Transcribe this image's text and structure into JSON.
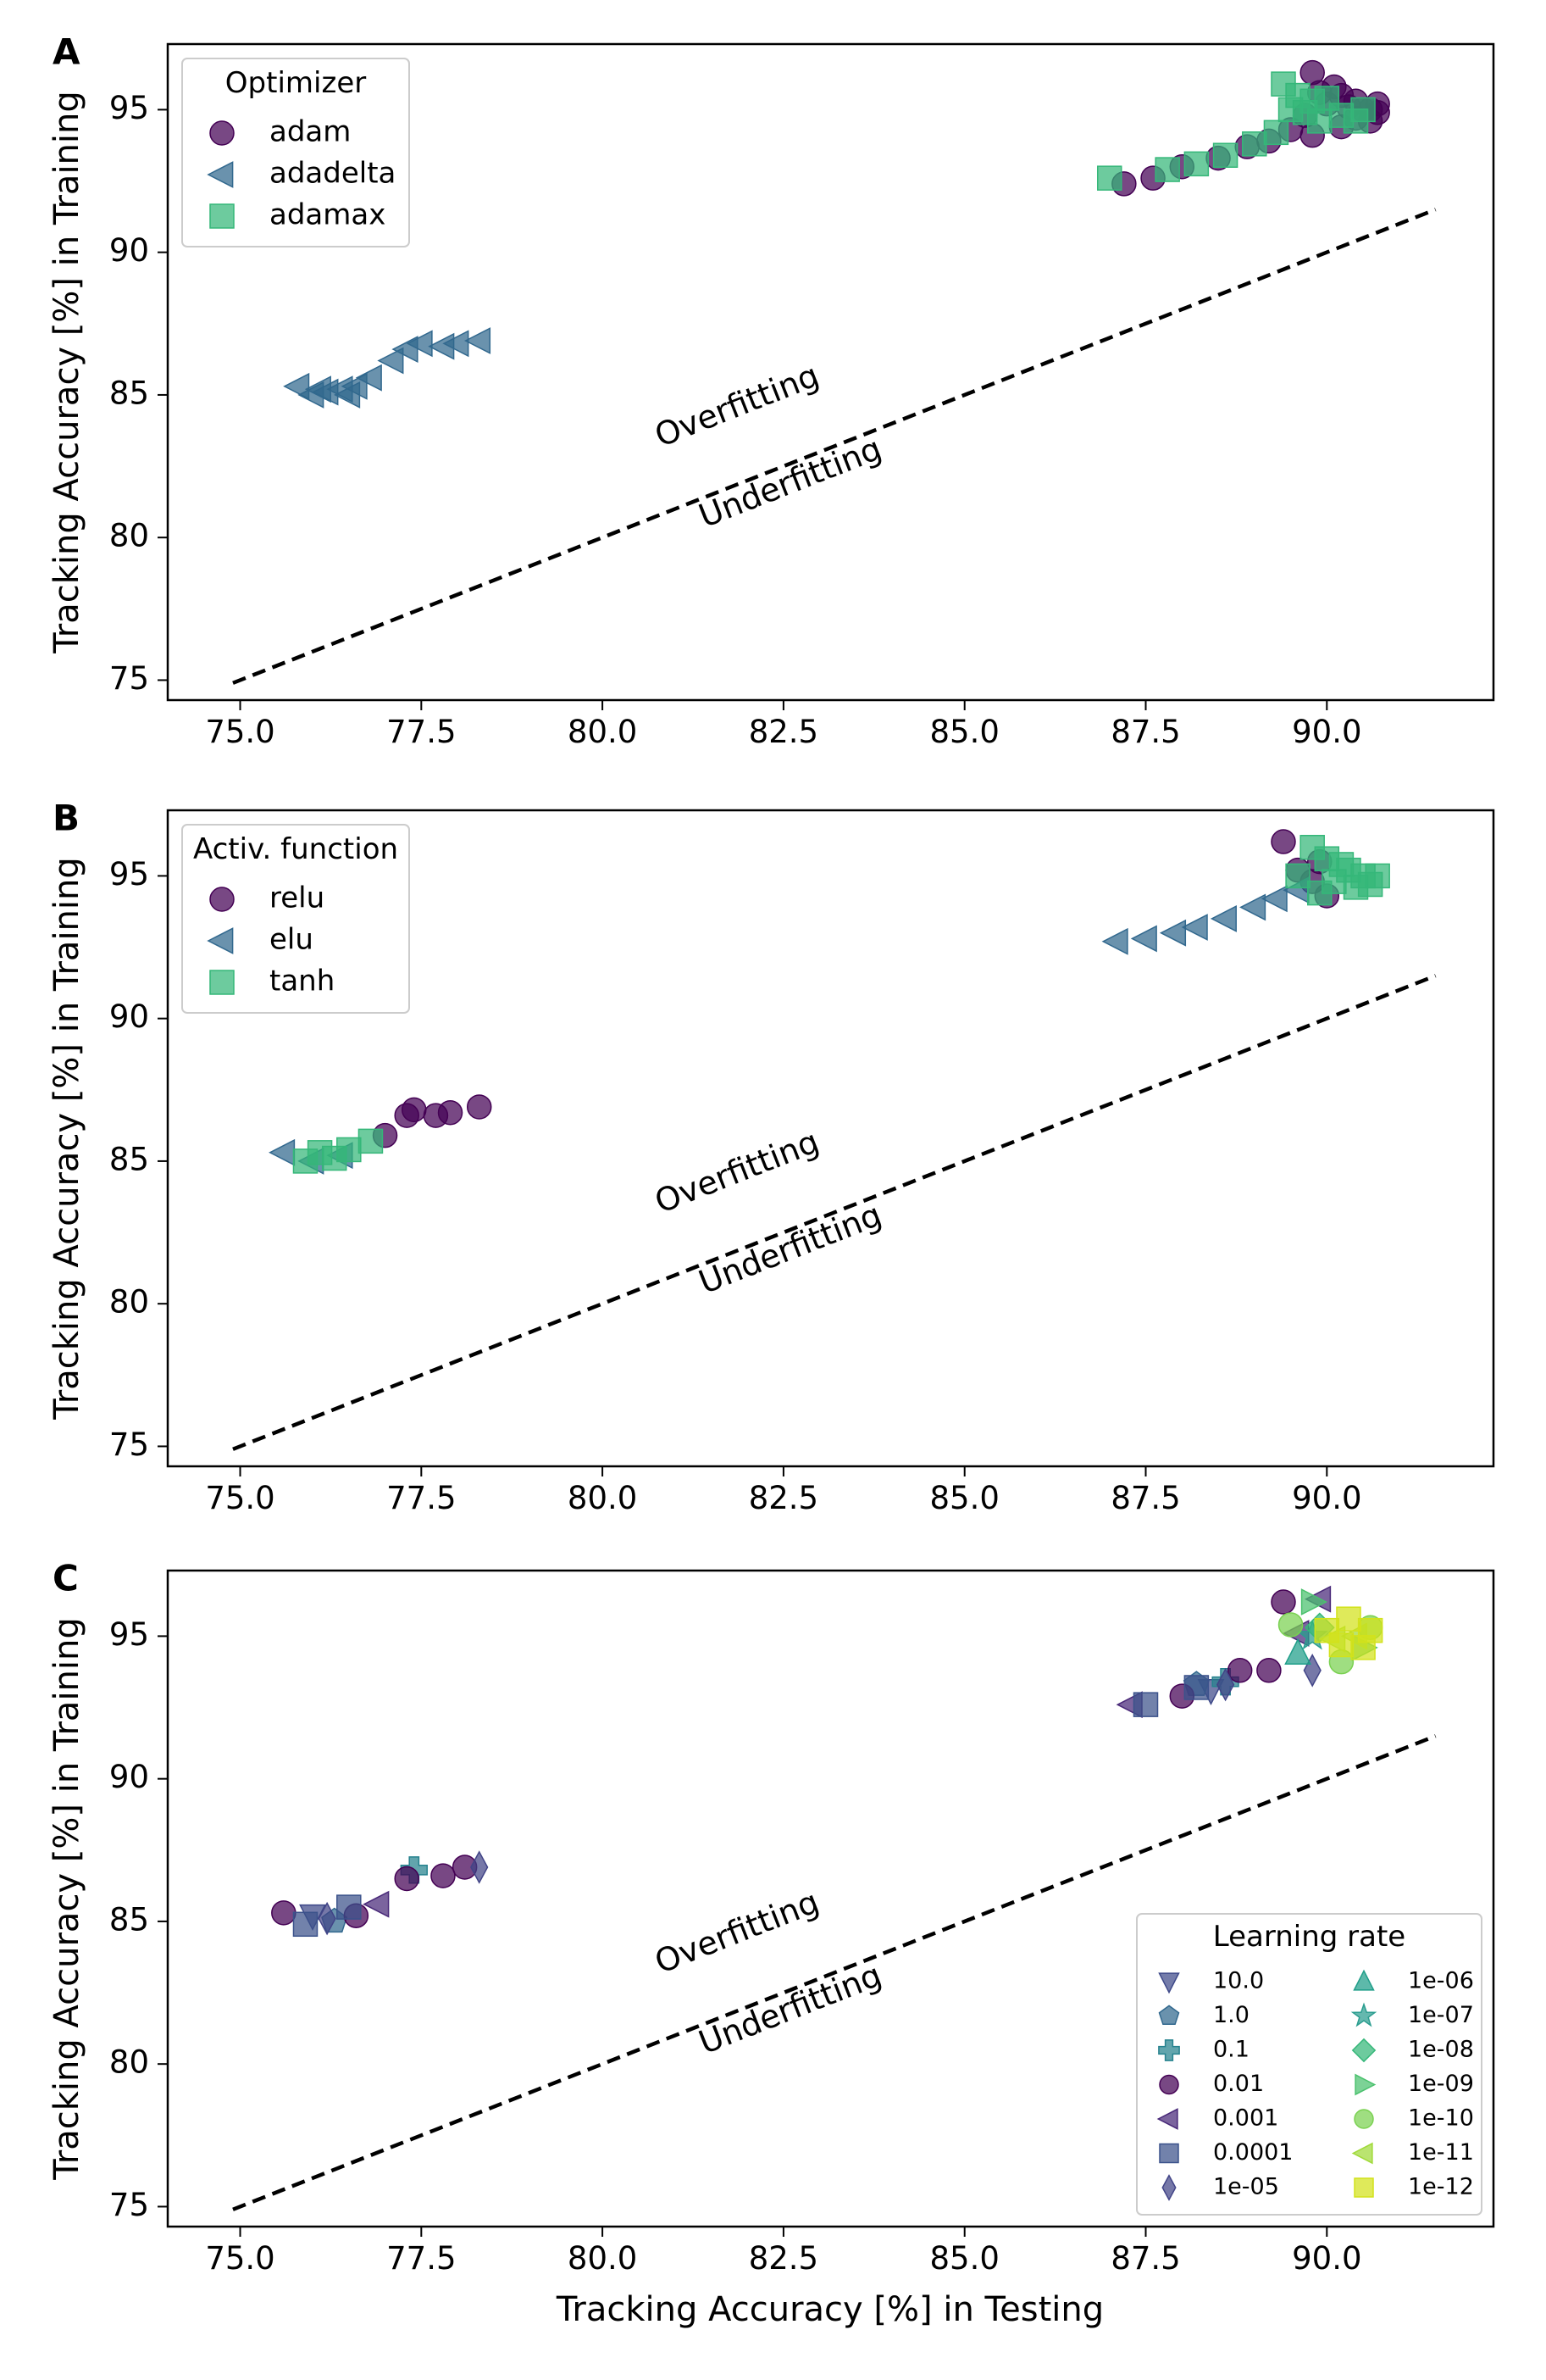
{
  "figure": {
    "x_label": "Tracking Accuracy [%] in Testing",
    "y_label": "Tracking Accuracy [%] in Training",
    "overfit_label": "Overfitting",
    "underfit_label": "Underfitting"
  },
  "chart_data": [
    {
      "type": "scatter",
      "panel_label": "A",
      "legend_title": "Optimizer",
      "legend_position": "top-left",
      "xlim": [
        74.0,
        92.3
      ],
      "ylim": [
        74.3,
        97.3
      ],
      "x_ticks": [
        "75.0",
        "77.5",
        "80.0",
        "82.5",
        "85.0",
        "87.5",
        "90.0"
      ],
      "x_tick_values": [
        75.0,
        77.5,
        80.0,
        82.5,
        85.0,
        87.5,
        90.0
      ],
      "y_ticks": [
        "75",
        "80",
        "85",
        "90",
        "95"
      ],
      "y_tick_values": [
        75,
        80,
        85,
        90,
        95
      ],
      "diagonal": [
        [
          74.9,
          74.9
        ],
        [
          91.5,
          91.5
        ]
      ],
      "series": [
        {
          "name": "adam",
          "marker": "circle",
          "color": "#440154",
          "points": [
            [
              87.2,
              92.4
            ],
            [
              87.6,
              92.6
            ],
            [
              88.0,
              93.0
            ],
            [
              88.5,
              93.3
            ],
            [
              88.9,
              93.7
            ],
            [
              89.2,
              93.9
            ],
            [
              89.5,
              94.3
            ],
            [
              89.7,
              94.8
            ],
            [
              89.8,
              96.3
            ],
            [
              89.9,
              95.6
            ],
            [
              90.0,
              95.2
            ],
            [
              90.1,
              95.8
            ],
            [
              90.2,
              94.4
            ],
            [
              90.3,
              95.1
            ],
            [
              90.4,
              94.7
            ],
            [
              90.5,
              95.0
            ],
            [
              90.6,
              94.6
            ],
            [
              90.7,
              94.9
            ],
            [
              90.7,
              95.2
            ],
            [
              89.8,
              94.1
            ],
            [
              90.2,
              95.5
            ],
            [
              90.4,
              95.3
            ],
            [
              90.6,
              95.0
            ]
          ]
        },
        {
          "name": "adadelta",
          "marker": "triangle-left",
          "color": "#31688e",
          "points": [
            [
              75.8,
              85.3
            ],
            [
              76.0,
              85.0
            ],
            [
              76.2,
              85.1
            ],
            [
              76.4,
              85.2
            ],
            [
              76.6,
              85.3
            ],
            [
              76.8,
              85.6
            ],
            [
              77.1,
              86.2
            ],
            [
              77.3,
              86.6
            ],
            [
              77.5,
              86.8
            ],
            [
              77.8,
              86.7
            ],
            [
              78.0,
              86.8
            ],
            [
              78.3,
              86.9
            ],
            [
              76.1,
              85.2
            ],
            [
              76.5,
              85.0
            ]
          ]
        },
        {
          "name": "adamax",
          "marker": "square",
          "color": "#35b779",
          "points": [
            [
              87.0,
              92.6
            ],
            [
              87.8,
              92.9
            ],
            [
              88.2,
              93.1
            ],
            [
              88.6,
              93.4
            ],
            [
              89.0,
              93.8
            ],
            [
              89.3,
              94.2
            ],
            [
              89.4,
              95.9
            ],
            [
              89.6,
              95.5
            ],
            [
              89.7,
              94.9
            ],
            [
              89.9,
              94.6
            ],
            [
              90.0,
              95.4
            ],
            [
              90.2,
              94.8
            ],
            [
              90.4,
              94.6
            ],
            [
              90.5,
              95.0
            ],
            [
              89.5,
              95.0
            ],
            [
              89.8,
              95.3
            ]
          ]
        }
      ]
    },
    {
      "type": "scatter",
      "panel_label": "B",
      "legend_title": "Activ. function",
      "legend_position": "top-left",
      "xlim": [
        74.0,
        92.3
      ],
      "ylim": [
        74.3,
        97.3
      ],
      "x_ticks": [
        "75.0",
        "77.5",
        "80.0",
        "82.5",
        "85.0",
        "87.5",
        "90.0"
      ],
      "x_tick_values": [
        75.0,
        77.5,
        80.0,
        82.5,
        85.0,
        87.5,
        90.0
      ],
      "y_ticks": [
        "75",
        "80",
        "85",
        "90",
        "95"
      ],
      "y_tick_values": [
        75,
        80,
        85,
        90,
        95
      ],
      "diagonal": [
        [
          74.9,
          74.9
        ],
        [
          91.5,
          91.5
        ]
      ],
      "series": [
        {
          "name": "relu",
          "marker": "circle",
          "color": "#440154",
          "points": [
            [
              77.0,
              85.9
            ],
            [
              77.3,
              86.6
            ],
            [
              77.4,
              86.8
            ],
            [
              77.7,
              86.6
            ],
            [
              77.9,
              86.7
            ],
            [
              78.3,
              86.9
            ],
            [
              89.4,
              96.2
            ],
            [
              89.6,
              95.2
            ],
            [
              89.8,
              94.8
            ],
            [
              89.9,
              95.5
            ],
            [
              90.0,
              94.3
            ]
          ]
        },
        {
          "name": "elu",
          "marker": "triangle-left",
          "color": "#31688e",
          "points": [
            [
              75.6,
              85.3
            ],
            [
              76.0,
              85.0
            ],
            [
              76.4,
              85.2
            ],
            [
              87.1,
              92.7
            ],
            [
              87.5,
              92.8
            ],
            [
              87.9,
              93.0
            ],
            [
              88.2,
              93.2
            ],
            [
              88.6,
              93.5
            ],
            [
              89.0,
              93.9
            ],
            [
              89.3,
              94.2
            ],
            [
              89.6,
              94.5
            ]
          ]
        },
        {
          "name": "tanh",
          "marker": "square",
          "color": "#35b779",
          "points": [
            [
              75.9,
              85.0
            ],
            [
              76.1,
              85.3
            ],
            [
              76.3,
              85.1
            ],
            [
              76.5,
              85.4
            ],
            [
              76.8,
              85.7
            ],
            [
              89.6,
              95.0
            ],
            [
              89.8,
              96.0
            ],
            [
              90.0,
              95.6
            ],
            [
              90.1,
              94.8
            ],
            [
              90.3,
              95.2
            ],
            [
              90.4,
              94.6
            ],
            [
              90.5,
              95.0
            ],
            [
              90.6,
              94.7
            ],
            [
              90.7,
              95.0
            ],
            [
              90.2,
              95.4
            ],
            [
              89.9,
              94.4
            ]
          ]
        }
      ]
    },
    {
      "type": "scatter",
      "panel_label": "C",
      "legend_title": "Learning rate",
      "legend_position": "bottom-right",
      "xlim": [
        74.0,
        92.3
      ],
      "ylim": [
        74.3,
        97.3
      ],
      "x_ticks": [
        "75.0",
        "77.5",
        "80.0",
        "82.5",
        "85.0",
        "87.5",
        "90.0"
      ],
      "x_tick_values": [
        75.0,
        77.5,
        80.0,
        82.5,
        85.0,
        87.5,
        90.0
      ],
      "y_ticks": [
        "75",
        "80",
        "85",
        "90",
        "95"
      ],
      "y_tick_values": [
        75,
        80,
        85,
        90,
        95
      ],
      "diagonal": [
        [
          74.9,
          74.9
        ],
        [
          91.5,
          91.5
        ]
      ],
      "series": [
        {
          "name": "10.0",
          "marker": "triangle-down",
          "color": "#3e4989",
          "points": [
            [
              76.0,
              85.2
            ],
            [
              88.4,
              93.1
            ]
          ]
        },
        {
          "name": "1.0",
          "marker": "pentagon",
          "color": "#31688e",
          "points": [
            [
              76.3,
              85.0
            ],
            [
              88.2,
              93.3
            ]
          ]
        },
        {
          "name": "0.1",
          "marker": "plus",
          "color": "#26828e",
          "points": [
            [
              77.4,
              86.8
            ],
            [
              88.6,
              93.4
            ]
          ]
        },
        {
          "name": "0.01",
          "marker": "circle",
          "color": "#440154",
          "points": [
            [
              75.6,
              85.3
            ],
            [
              76.6,
              85.2
            ],
            [
              77.3,
              86.5
            ],
            [
              77.8,
              86.6
            ],
            [
              78.1,
              86.9
            ],
            [
              88.0,
              92.9
            ],
            [
              88.8,
              93.8
            ],
            [
              89.2,
              93.8
            ],
            [
              89.4,
              96.2
            ]
          ]
        },
        {
          "name": "0.001",
          "marker": "triangle-left",
          "color": "#482878",
          "points": [
            [
              76.9,
              85.6
            ],
            [
              87.3,
              92.6
            ],
            [
              89.6,
              95.1
            ],
            [
              89.9,
              96.3
            ]
          ]
        },
        {
          "name": "0.0001",
          "marker": "square",
          "color": "#3b528b",
          "points": [
            [
              75.9,
              84.9
            ],
            [
              76.5,
              85.5
            ],
            [
              87.5,
              92.6
            ],
            [
              88.2,
              93.2
            ]
          ]
        },
        {
          "name": "1e-05",
          "marker": "diamond",
          "color": "#414487",
          "points": [
            [
              76.2,
              85.1
            ],
            [
              78.3,
              86.9
            ],
            [
              88.6,
              93.3
            ],
            [
              89.8,
              93.8
            ]
          ]
        },
        {
          "name": "1e-06",
          "marker": "triangle-up",
          "color": "#1f9e89",
          "points": [
            [
              89.6,
              94.4
            ]
          ]
        },
        {
          "name": "1e-07",
          "marker": "star",
          "color": "#2a9d8f",
          "points": [
            [
              89.8,
              95.0
            ]
          ]
        },
        {
          "name": "1e-08",
          "marker": "diamond-wide",
          "color": "#35b779",
          "points": [
            [
              89.9,
              95.3
            ]
          ]
        },
        {
          "name": "1e-09",
          "marker": "triangle-right",
          "color": "#4ac16d",
          "points": [
            [
              89.8,
              96.2
            ],
            [
              90.5,
              94.6
            ]
          ]
        },
        {
          "name": "1e-10",
          "marker": "circle",
          "color": "#7ad151",
          "points": [
            [
              89.5,
              95.4
            ],
            [
              90.2,
              94.1
            ],
            [
              90.6,
              95.3
            ]
          ]
        },
        {
          "name": "1e-11",
          "marker": "triangle-left",
          "color": "#a0da39",
          "points": [
            [
              90.1,
              94.9
            ],
            [
              90.4,
              95.0
            ]
          ]
        },
        {
          "name": "1e-12",
          "marker": "square",
          "color": "#d2e21b",
          "points": [
            [
              90.0,
              95.2
            ],
            [
              90.2,
              94.7
            ],
            [
              90.3,
              95.6
            ],
            [
              90.5,
              94.6
            ],
            [
              90.6,
              95.2
            ]
          ]
        }
      ]
    }
  ]
}
